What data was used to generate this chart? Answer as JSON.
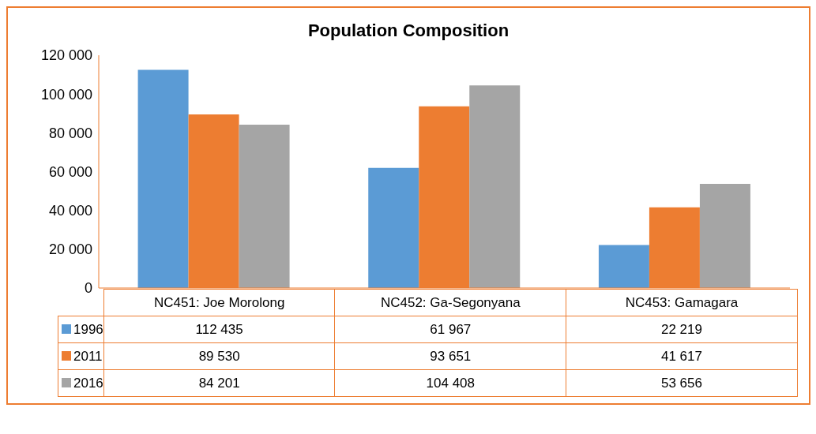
{
  "chart_data": {
    "type": "bar",
    "title": "Population Composition",
    "categories": [
      "NC451: Joe Morolong",
      "NC452: Ga-Segonyana",
      "NC453: Gamagara"
    ],
    "series": [
      {
        "name": "1996",
        "color": "#5b9bd5",
        "values": [
          112435,
          61967,
          22219
        ],
        "value_labels": [
          "112 435",
          "61 967",
          "22 219"
        ]
      },
      {
        "name": "2011",
        "color": "#ed7d31",
        "values": [
          89530,
          93651,
          41617
        ],
        "value_labels": [
          "89 530",
          "93 651",
          "41 617"
        ]
      },
      {
        "name": "2016",
        "color": "#a5a5a5",
        "values": [
          84201,
          104408,
          53656
        ],
        "value_labels": [
          "84 201",
          "104 408",
          "53 656"
        ]
      }
    ],
    "ylim": [
      0,
      120000
    ],
    "yticks": [
      0,
      {
        "value": 20000,
        "label": "20 000"
      },
      {
        "value": 40000,
        "label": "40 000"
      },
      {
        "value": 60000,
        "label": "60 000"
      },
      {
        "value": 80000,
        "label": "80 000"
      },
      {
        "value": 100000,
        "label": "100 000"
      },
      {
        "value": 120000,
        "label": "120 000"
      }
    ],
    "grid": false,
    "legend": "bottom"
  }
}
